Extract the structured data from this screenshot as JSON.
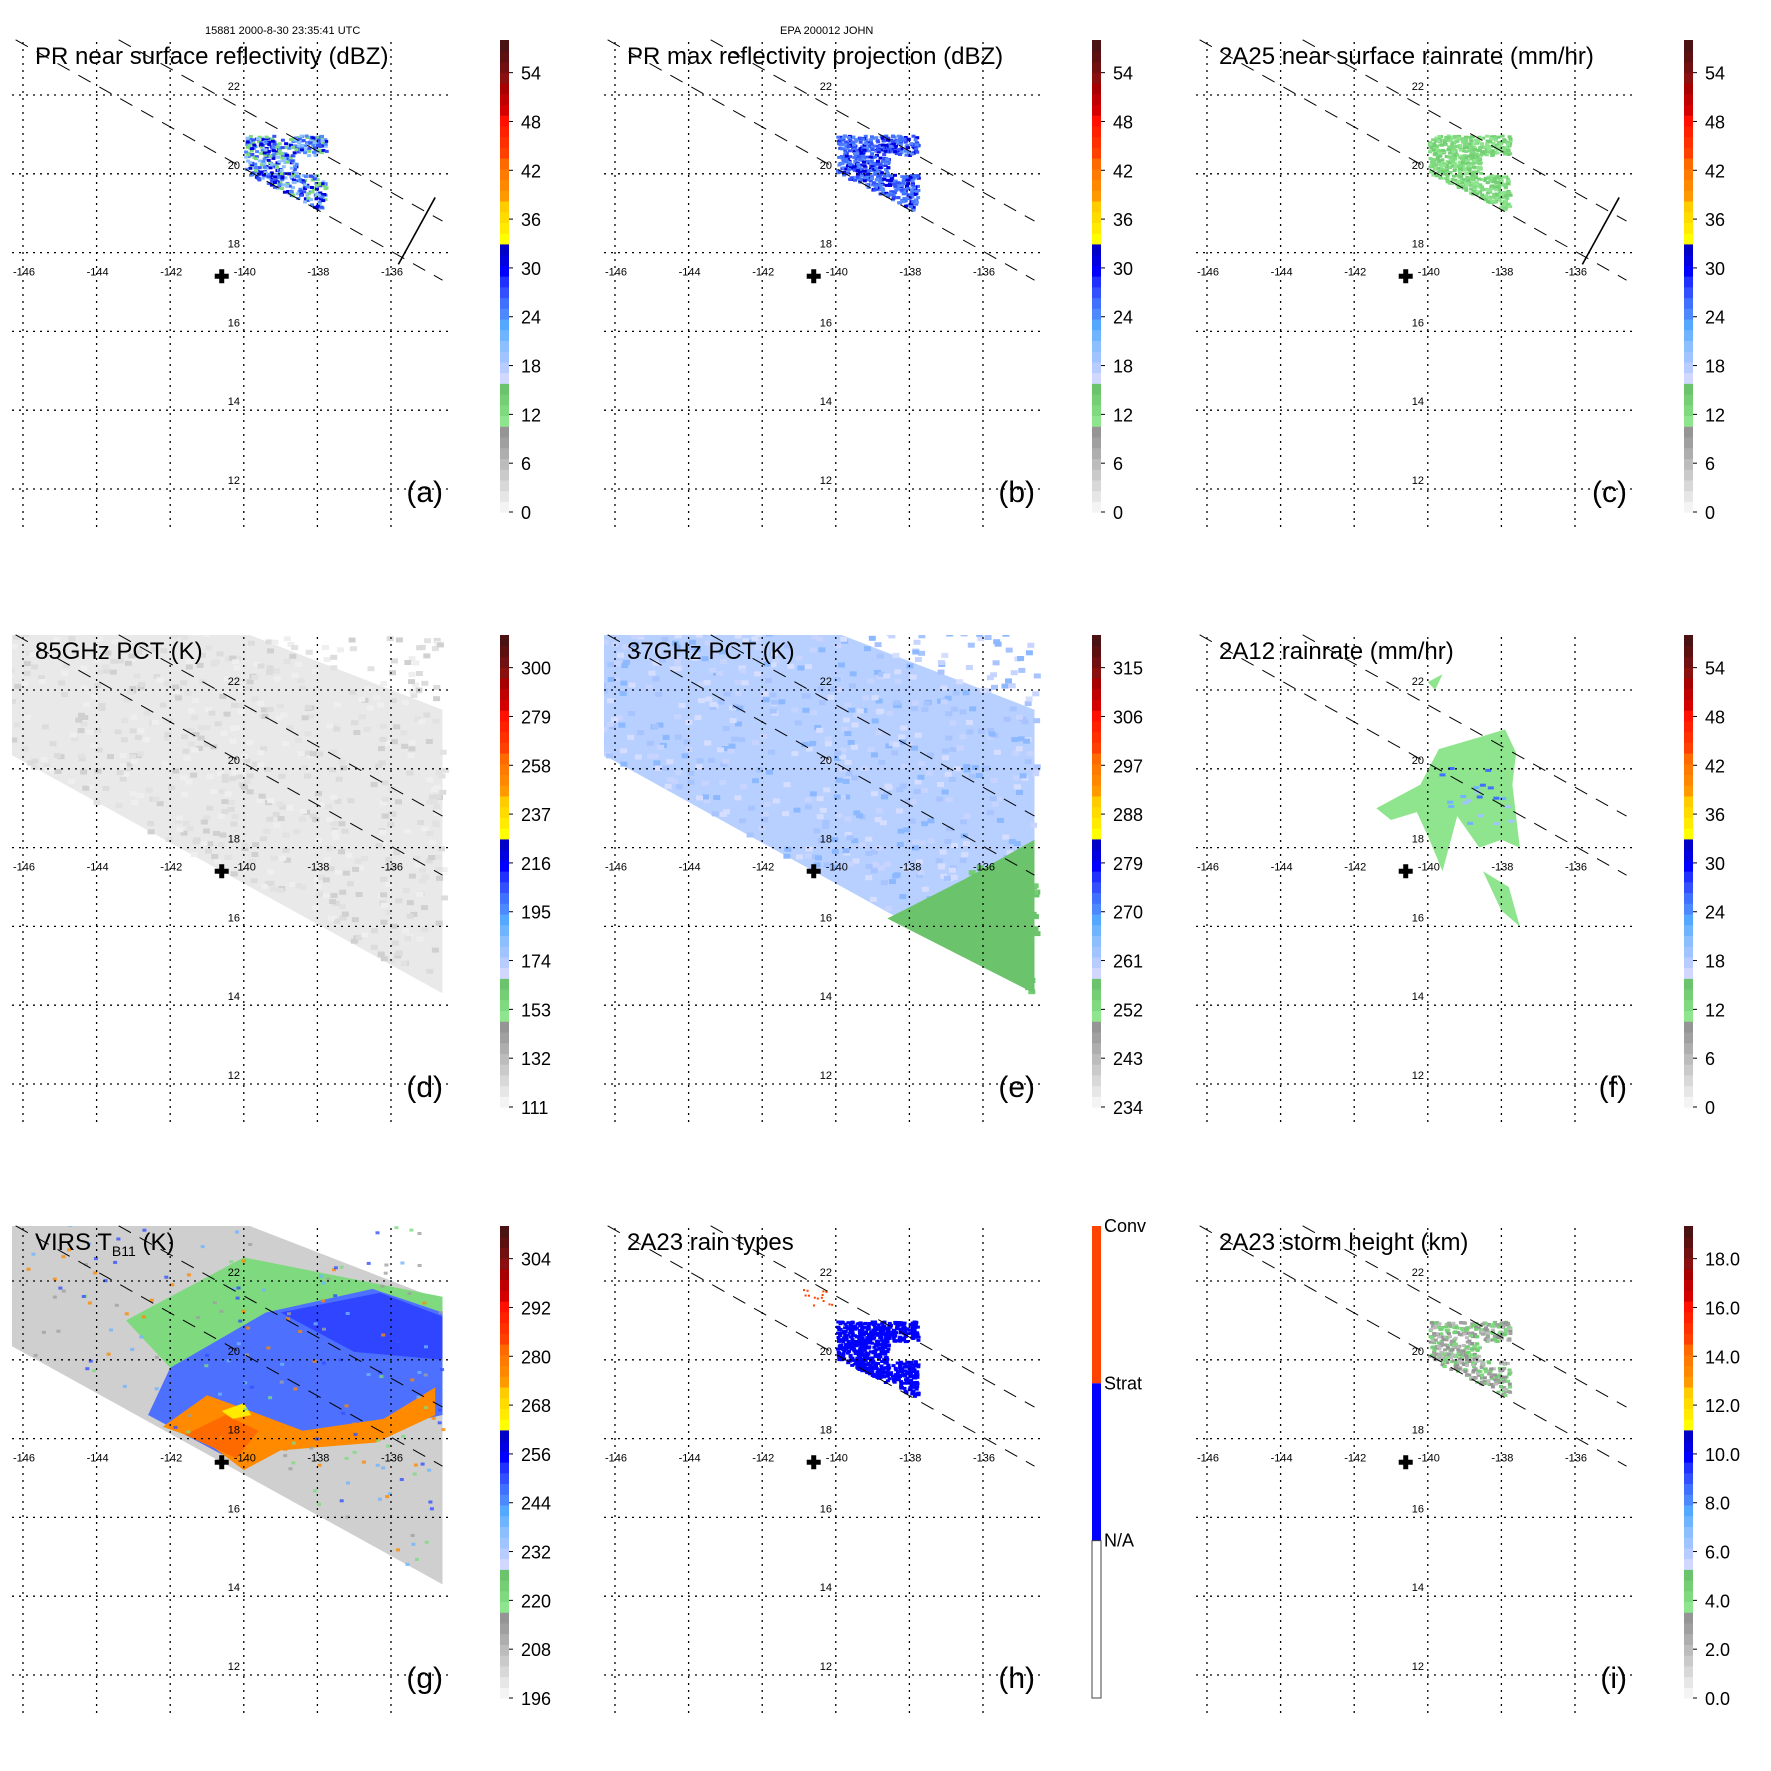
{
  "header": {
    "left_caption": "15881 2000-8-30 23:35:41 UTC",
    "center_caption": "EPA 200012 JOHN"
  },
  "map": {
    "lon_ticks": [
      "-146",
      "-144",
      "-142",
      "-140",
      "-138",
      "-136"
    ],
    "lat_ticks": [
      "22",
      "20",
      "18",
      "16",
      "14",
      "12"
    ],
    "lon_values": [
      -146,
      -144,
      -142,
      -140,
      -138,
      -136
    ],
    "lat_values": [
      22,
      20,
      18,
      16,
      14,
      12
    ],
    "lon_range": [
      -146.6,
      -134.6
    ],
    "lat_range": [
      11.2,
      23.4
    ],
    "storm_center_marker": {
      "lon": -140.6,
      "lat": 17.4,
      "icon": "plus-marker"
    },
    "swath_edges": "dashed",
    "grid": "dotted"
  },
  "palette": {
    "greys": [
      "#f4f4f4",
      "#e6e6e6",
      "#d8d8d8",
      "#cacaca",
      "#bcbcbc",
      "#aeaeae",
      "#a0a0a0",
      "#959595"
    ],
    "greens": [
      "#8ee58e",
      "#7fd97f",
      "#74cf74",
      "#6bc36b"
    ],
    "lightblues": [
      "#d0d8ff",
      "#b8ccff",
      "#a0c4ff",
      "#8cbfff",
      "#6eb4ff",
      "#55a8ff"
    ],
    "blues": [
      "#4d88ff",
      "#4070ff",
      "#3350ff",
      "#2030ff",
      "#0000ff",
      "#0000e0",
      "#0000c8"
    ],
    "yellows": [
      "#ffff00",
      "#ffea00",
      "#ffdb00",
      "#ffcc00"
    ],
    "oranges": [
      "#ff9900",
      "#ff8800",
      "#ff7a00",
      "#ff6a00"
    ],
    "reds": [
      "#ff4000",
      "#ff3000",
      "#ff2000",
      "#ff1000",
      "#d40000",
      "#c00000",
      "#a80000"
    ],
    "darkreds": [
      "#8a1010",
      "#701010",
      "#5c1010",
      "#4a1212"
    ],
    "conv": "#ff4400",
    "strat": "#0000ff",
    "na": "#ffffff"
  },
  "chart_data": [
    {
      "id": "a",
      "type": "heatmap",
      "title": "PR near surface reflectivity (dBZ)",
      "tag": "(a)",
      "colorbar": {
        "ticks": [
          "0",
          "6",
          "12",
          "18",
          "24",
          "30",
          "36",
          "42",
          "48",
          "54"
        ],
        "range": [
          0,
          60
        ]
      },
      "features": {
        "swath": "PR",
        "scan_bar": true,
        "storm_echo": {
          "lon": [
            -140,
            -137.8
          ],
          "lat": [
            19.2,
            21.0
          ],
          "dominant_values_dBZ": [
            18,
            30
          ]
        }
      }
    },
    {
      "id": "b",
      "type": "heatmap",
      "title": "PR max reflectivity projection (dBZ)",
      "tag": "(b)",
      "colorbar": {
        "ticks": [
          "0",
          "6",
          "12",
          "18",
          "24",
          "30",
          "36",
          "42",
          "48",
          "54"
        ],
        "range": [
          0,
          60
        ]
      },
      "features": {
        "swath": "PR",
        "contours": true,
        "storm_echo": {
          "lon": [
            -140,
            -137.8
          ],
          "lat": [
            19.2,
            21.0
          ],
          "dominant_values_dBZ": [
            24,
            33
          ]
        }
      }
    },
    {
      "id": "c",
      "type": "heatmap",
      "title": "2A25 near surface rainrate (mm/hr)",
      "tag": "(c)",
      "colorbar": {
        "ticks": [
          "0",
          "6",
          "12",
          "18",
          "24",
          "30",
          "36",
          "42",
          "48",
          "54"
        ],
        "range": [
          0,
          60
        ]
      },
      "features": {
        "swath": "PR",
        "scan_bar": true,
        "contours": true,
        "storm_echo": {
          "lon": [
            -140,
            -137.8
          ],
          "lat": [
            19.2,
            21.0
          ],
          "dominant_values_mmhr": [
            0,
            6
          ]
        }
      }
    },
    {
      "id": "d",
      "type": "heatmap",
      "title": "85GHz PCT (K)",
      "tag": "(d)",
      "colorbar": {
        "ticks": [
          "111",
          "132",
          "153",
          "174",
          "195",
          "216",
          "237",
          "258",
          "279",
          "300"
        ],
        "range": [
          90,
          300
        ],
        "reversed": true
      },
      "features": {
        "swath": "TMI",
        "field_range_K": [
          270,
          300
        ]
      }
    },
    {
      "id": "e",
      "type": "heatmap",
      "title": "37GHz PCT (K)",
      "tag": "(e)",
      "colorbar": {
        "ticks": [
          "234",
          "243",
          "252",
          "261",
          "270",
          "279",
          "288",
          "297",
          "306",
          "315"
        ],
        "range": [
          225,
          315
        ],
        "reversed": true
      },
      "features": {
        "swath": "TMI",
        "field_range_K": [
          270,
          290
        ]
      }
    },
    {
      "id": "f",
      "type": "heatmap",
      "title": "2A12 rainrate (mm/hr)",
      "tag": "(f)",
      "colorbar": {
        "ticks": [
          "0",
          "6",
          "12",
          "18",
          "24",
          "30",
          "36",
          "42",
          "48",
          "54"
        ],
        "range": [
          0,
          60
        ]
      },
      "features": {
        "contours": true,
        "rain_area": {
          "lon": [
            -141.5,
            -137.6
          ],
          "lat": [
            16.0,
            22.2
          ],
          "dominant_values_mmhr": [
            0,
            12
          ]
        }
      }
    },
    {
      "id": "g",
      "type": "heatmap",
      "title": "VIRS T",
      "title_sub": "B11",
      "title_unit": " (K)",
      "tag": "(g)",
      "colorbar": {
        "ticks": [
          "196",
          "208",
          "220",
          "232",
          "244",
          "256",
          "268",
          "280",
          "292",
          "304"
        ],
        "range": [
          184,
          304
        ],
        "reversed": true
      },
      "features": {
        "swath": "VIRS",
        "contours": true,
        "field_range_K": [
          200,
          300
        ]
      }
    },
    {
      "id": "h",
      "type": "heatmap",
      "title": "2A23 rain types",
      "tag": "(h)",
      "colorbar": {
        "categorical": true,
        "labels": [
          "Conv",
          "Strat",
          "N/A"
        ]
      },
      "features": {
        "swath": "PR",
        "stratiform_area": {
          "lon": [
            -140,
            -137.8
          ],
          "lat": [
            19.2,
            21.0
          ]
        },
        "convective_points": {
          "lon": [
            -141.0,
            -140.1
          ],
          "lat": [
            21.4,
            21.8
          ]
        }
      }
    },
    {
      "id": "i",
      "type": "heatmap",
      "title": "2A23 storm height (km)",
      "tag": "(i)",
      "colorbar": {
        "ticks": [
          "0.0",
          "2.0",
          "4.0",
          "6.0",
          "8.0",
          "10.0",
          "12.0",
          "14.0",
          "16.0",
          "18.0"
        ],
        "range": [
          0,
          20
        ]
      },
      "features": {
        "swath": "PR",
        "storm_area": {
          "lon": [
            -140,
            -137.8
          ],
          "lat": [
            19.2,
            21.0
          ],
          "dominant_values_km": [
            3,
            7
          ]
        }
      }
    }
  ]
}
